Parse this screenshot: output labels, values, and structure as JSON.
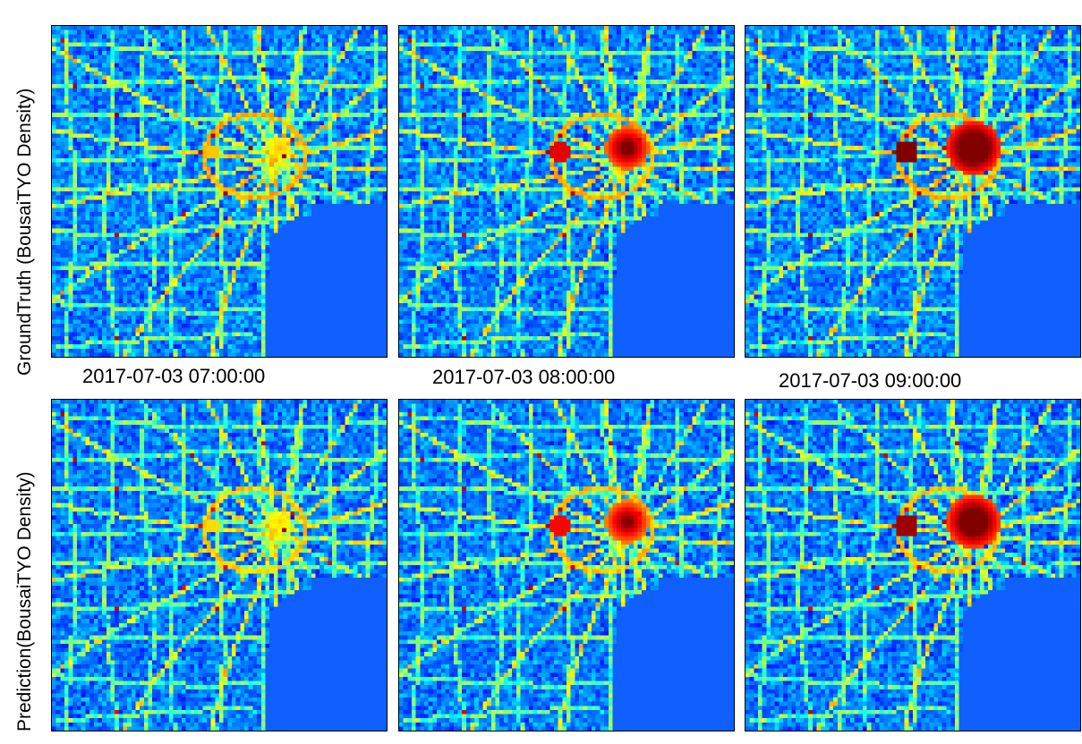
{
  "chart_data": {
    "type": "heatmap",
    "row_labels": [
      "GroundTruth (BousaiTYO Density)",
      "Prediction(BousaiTYO Density)"
    ],
    "timestamps": [
      "2017-07-03 07:00:00",
      "2017-07-03 08:00:00",
      "2017-07-03 09:00:00"
    ],
    "colormap": "jet",
    "grid": [
      80,
      80
    ],
    "hotspot_intensity": [
      0.2,
      0.75,
      1.0
    ],
    "colors": {
      "water": "#1060ff",
      "low": "#1a7cf0",
      "mid": "#22d2e6",
      "high": "#7cff3a",
      "peak": "#ff1a00"
    }
  }
}
